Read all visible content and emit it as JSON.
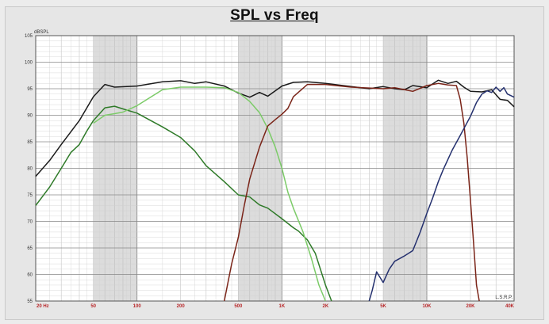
{
  "chart_data": {
    "type": "line",
    "title": "SPL vs Freq",
    "ylabel": "dBSPL",
    "xlabel": "",
    "x_scale": "log",
    "xlim": [
      20,
      40000
    ],
    "ylim": [
      55,
      105
    ],
    "y_ticks": [
      55,
      60,
      65,
      70,
      75,
      80,
      85,
      90,
      95,
      100,
      105
    ],
    "x_ticks": [
      {
        "value": 20,
        "label": "20 Hz"
      },
      {
        "value": 50,
        "label": "50"
      },
      {
        "value": 100,
        "label": "100"
      },
      {
        "value": 200,
        "label": "200"
      },
      {
        "value": 500,
        "label": "500"
      },
      {
        "value": 1000,
        "label": "1K"
      },
      {
        "value": 2000,
        "label": "2K"
      },
      {
        "value": 5000,
        "label": "5K"
      },
      {
        "value": 10000,
        "label": "10K"
      },
      {
        "value": 20000,
        "label": "20K"
      },
      {
        "value": 40000,
        "label": "40K"
      }
    ],
    "corner_label": "L.S.R.P.",
    "grid": true,
    "shaded_bands": [
      [
        50,
        100
      ],
      [
        500,
        1000
      ],
      [
        5000,
        10000
      ]
    ],
    "series": [
      {
        "color": "#1a1a1a",
        "points": [
          [
            20,
            78.5
          ],
          [
            25,
            81.5
          ],
          [
            30,
            84.5
          ],
          [
            40,
            89
          ],
          [
            50,
            93.5
          ],
          [
            60,
            95.8
          ],
          [
            70,
            95.3
          ],
          [
            100,
            95.5
          ],
          [
            150,
            96.3
          ],
          [
            200,
            96.5
          ],
          [
            250,
            96
          ],
          [
            300,
            96.3
          ],
          [
            400,
            95.5
          ],
          [
            500,
            94.2
          ],
          [
            600,
            93.4
          ],
          [
            700,
            94.3
          ],
          [
            800,
            93.6
          ],
          [
            1000,
            95.5
          ],
          [
            1200,
            96.2
          ],
          [
            1500,
            96.3
          ],
          [
            2000,
            96
          ],
          [
            3000,
            95.4
          ],
          [
            4000,
            95
          ],
          [
            5000,
            95.4
          ],
          [
            6000,
            95
          ],
          [
            7000,
            94.8
          ],
          [
            8000,
            95.6
          ],
          [
            10000,
            95.2
          ],
          [
            12000,
            96.6
          ],
          [
            14000,
            96
          ],
          [
            16000,
            96.4
          ],
          [
            18000,
            95.3
          ],
          [
            20000,
            94.5
          ],
          [
            24000,
            94.4
          ],
          [
            28000,
            94.8
          ],
          [
            32000,
            93
          ],
          [
            36000,
            92.8
          ],
          [
            40000,
            91.6
          ]
        ]
      },
      {
        "color": "#2e7a28",
        "points": [
          [
            20,
            73
          ],
          [
            25,
            76.5
          ],
          [
            30,
            80
          ],
          [
            35,
            83
          ],
          [
            40,
            84.5
          ],
          [
            45,
            87
          ],
          [
            50,
            89
          ],
          [
            60,
            91.4
          ],
          [
            70,
            91.7
          ],
          [
            80,
            91.2
          ],
          [
            100,
            90.4
          ],
          [
            150,
            87.8
          ],
          [
            200,
            85.8
          ],
          [
            250,
            83.3
          ],
          [
            300,
            80.5
          ],
          [
            400,
            77.5
          ],
          [
            500,
            75
          ],
          [
            600,
            74.6
          ],
          [
            700,
            73.1
          ],
          [
            800,
            72.5
          ],
          [
            1000,
            70.5
          ],
          [
            1200,
            68.8
          ],
          [
            1300,
            68.2
          ],
          [
            1500,
            66.5
          ],
          [
            1700,
            64
          ],
          [
            2000,
            58
          ],
          [
            2200,
            55
          ]
        ]
      },
      {
        "color": "#7ccb68",
        "points": [
          [
            50,
            88.5
          ],
          [
            60,
            90
          ],
          [
            70,
            90.3
          ],
          [
            80,
            90.6
          ],
          [
            100,
            91.8
          ],
          [
            150,
            94.8
          ],
          [
            200,
            95.3
          ],
          [
            300,
            95.3
          ],
          [
            400,
            95.2
          ],
          [
            500,
            94.3
          ],
          [
            600,
            92.6
          ],
          [
            700,
            90.5
          ],
          [
            800,
            87.5
          ],
          [
            900,
            84
          ],
          [
            1000,
            80
          ],
          [
            1100,
            75.5
          ],
          [
            1200,
            72.5
          ],
          [
            1400,
            68
          ],
          [
            1600,
            63
          ],
          [
            1800,
            58
          ],
          [
            2000,
            55
          ]
        ]
      },
      {
        "color": "#7a2418",
        "points": [
          [
            400,
            55
          ],
          [
            450,
            62
          ],
          [
            500,
            67
          ],
          [
            550,
            73
          ],
          [
            600,
            78
          ],
          [
            700,
            84
          ],
          [
            800,
            88
          ],
          [
            900,
            89.2
          ],
          [
            1000,
            90.2
          ],
          [
            1100,
            91.3
          ],
          [
            1200,
            93.5
          ],
          [
            1500,
            95.8
          ],
          [
            2000,
            95.8
          ],
          [
            3000,
            95.3
          ],
          [
            5000,
            95
          ],
          [
            6000,
            95.2
          ],
          [
            8000,
            94.5
          ],
          [
            10000,
            95.6
          ],
          [
            12000,
            96
          ],
          [
            14000,
            95.7
          ],
          [
            16000,
            95.6
          ],
          [
            17000,
            93
          ],
          [
            18000,
            88.5
          ],
          [
            19000,
            82
          ],
          [
            20000,
            74
          ],
          [
            21000,
            66
          ],
          [
            22000,
            58
          ],
          [
            23000,
            55
          ]
        ]
      },
      {
        "color": "#24306e",
        "points": [
          [
            4000,
            55
          ],
          [
            4200,
            57
          ],
          [
            4500,
            60.5
          ],
          [
            5000,
            58.5
          ],
          [
            5500,
            61
          ],
          [
            6000,
            62.5
          ],
          [
            7000,
            63.5
          ],
          [
            8000,
            64.5
          ],
          [
            9000,
            68
          ],
          [
            10000,
            71.5
          ],
          [
            11000,
            74.5
          ],
          [
            12000,
            77.5
          ],
          [
            13000,
            79.8
          ],
          [
            15000,
            83.5
          ],
          [
            17000,
            86.2
          ],
          [
            20000,
            89.8
          ],
          [
            22000,
            92.4
          ],
          [
            24000,
            94
          ],
          [
            26000,
            94.6
          ],
          [
            28000,
            94.3
          ],
          [
            30000,
            95.3
          ],
          [
            32000,
            94.5
          ],
          [
            34000,
            95.2
          ],
          [
            36000,
            94
          ],
          [
            38000,
            93.7
          ],
          [
            40000,
            93.4
          ]
        ]
      }
    ]
  }
}
